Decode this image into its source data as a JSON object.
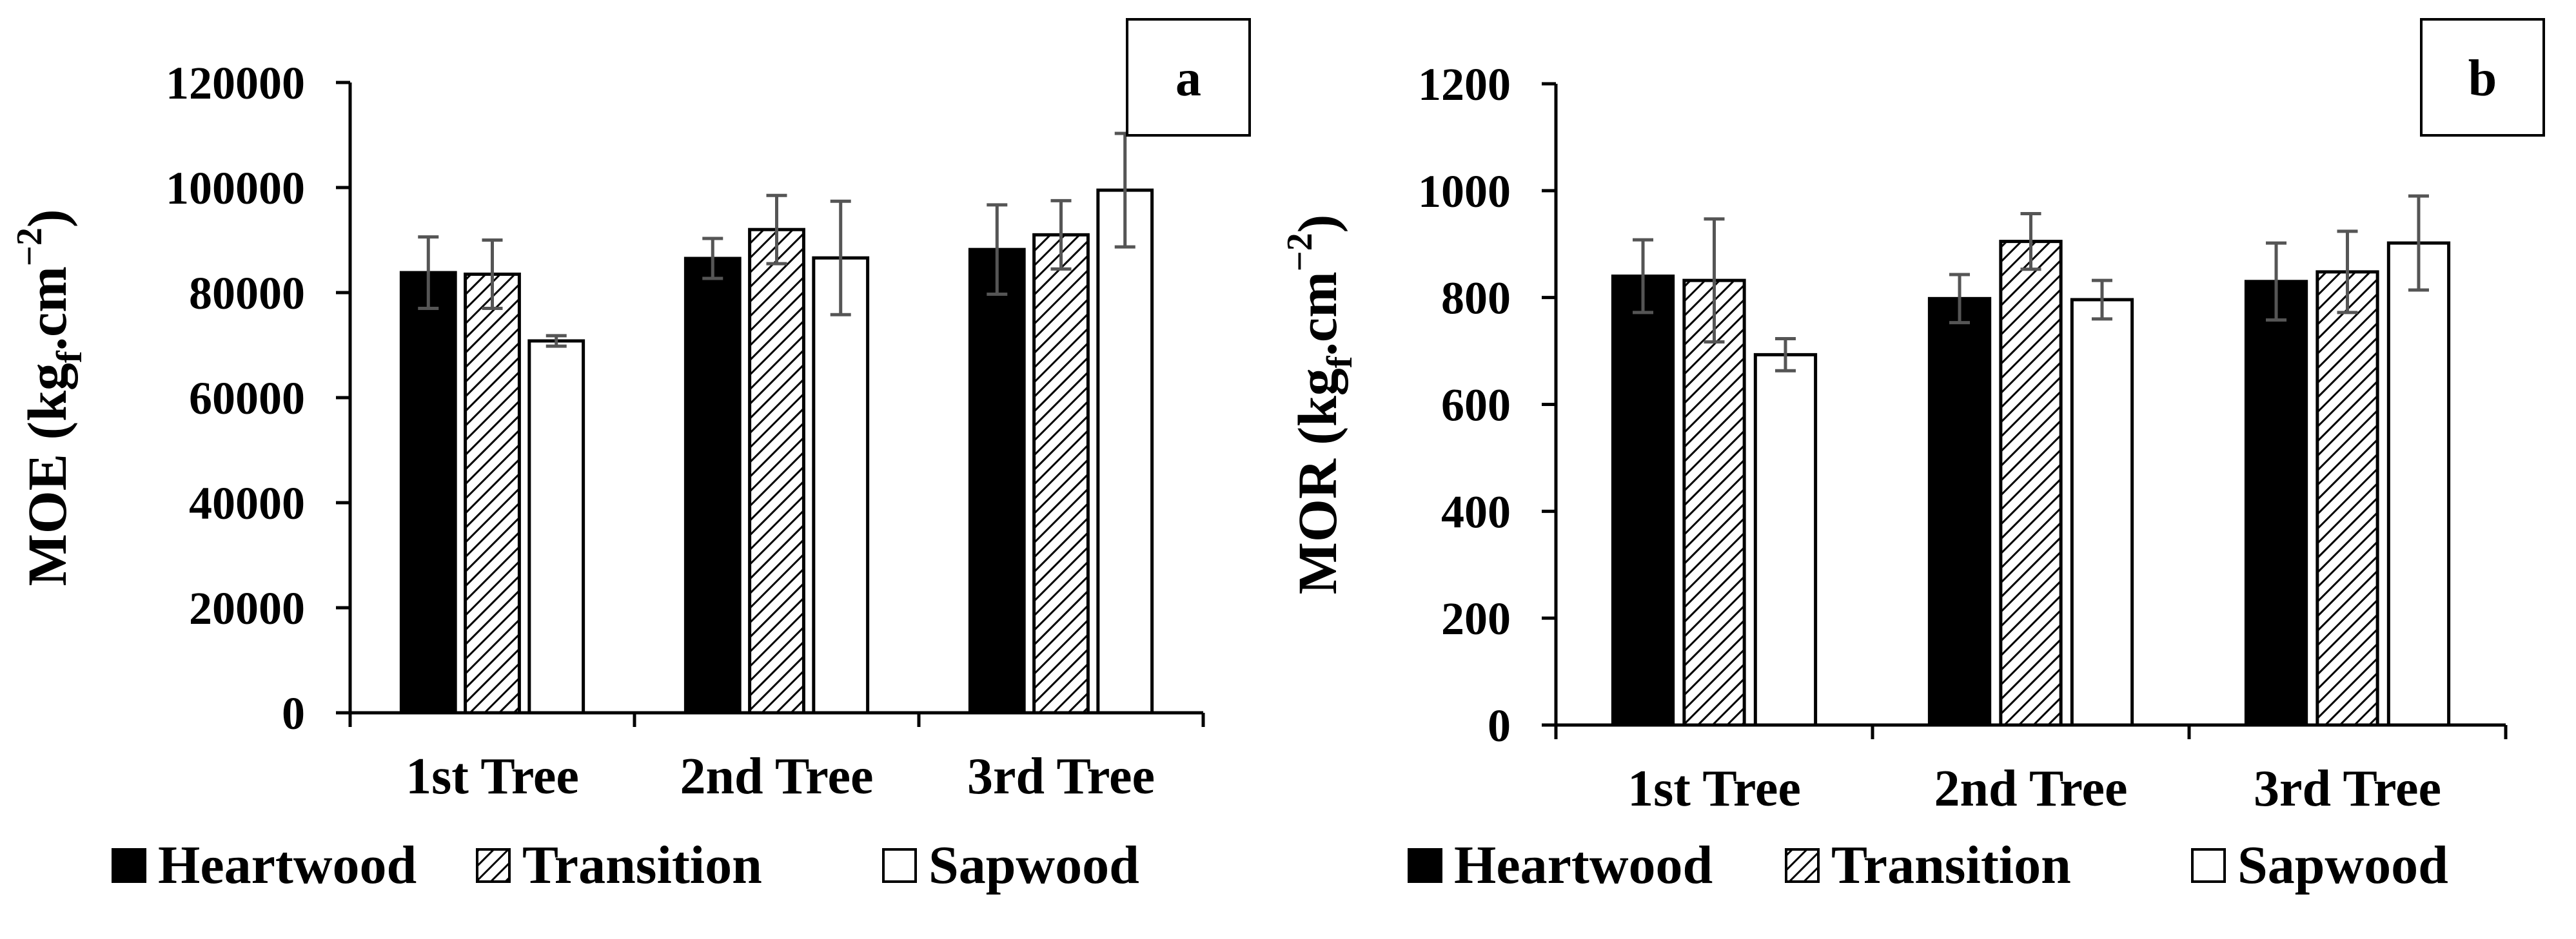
{
  "chart_data": [
    {
      "type": "bar",
      "panel_label": "a",
      "ylabel_prefix": "MOE (kg",
      "ylabel_sub": "f",
      "ylabel_suffix": ".cm",
      "ylabel_sup": "−2",
      "ylabel_close": ")",
      "ylim": [
        0,
        120000
      ],
      "yticks": [
        "0",
        "20000",
        "40000",
        "60000",
        "80000",
        "100000",
        "120000"
      ],
      "categories": [
        "1st Tree",
        "2nd Tree",
        "3rd Tree"
      ],
      "series": [
        {
          "name": "Heartwood",
          "values": [
            83800,
            86500,
            88200
          ],
          "errors": [
            6800,
            3800,
            8500
          ]
        },
        {
          "name": "Transition",
          "values": [
            83500,
            92000,
            91000
          ],
          "errors": [
            6500,
            6500,
            6500
          ]
        },
        {
          "name": "Sapwood",
          "values": [
            70800,
            86600,
            99500
          ],
          "errors": [
            1000,
            10800,
            10800
          ]
        }
      ],
      "grid": false,
      "legend_position": "bottom"
    },
    {
      "type": "bar",
      "panel_label": "b",
      "ylabel_prefix": "MOR (kg",
      "ylabel_sub": "f",
      "ylabel_suffix": ".cm",
      "ylabel_sup": "−2",
      "ylabel_close": ")",
      "ylim": [
        0,
        1200
      ],
      "yticks": [
        "0",
        "200",
        "400",
        "600",
        "800",
        "1000",
        "1200"
      ],
      "categories": [
        "1st Tree",
        "2nd Tree",
        "3rd Tree"
      ],
      "series": [
        {
          "name": "Heartwood",
          "values": [
            840,
            798,
            830
          ],
          "errors": [
            68,
            45,
            72
          ]
        },
        {
          "name": "Transition",
          "values": [
            832,
            905,
            848
          ],
          "errors": [
            115,
            52,
            76
          ]
        },
        {
          "name": "Sapwood",
          "values": [
            693,
            796,
            902
          ],
          "errors": [
            30,
            36,
            88
          ]
        }
      ],
      "grid": false,
      "legend_position": "bottom"
    }
  ]
}
